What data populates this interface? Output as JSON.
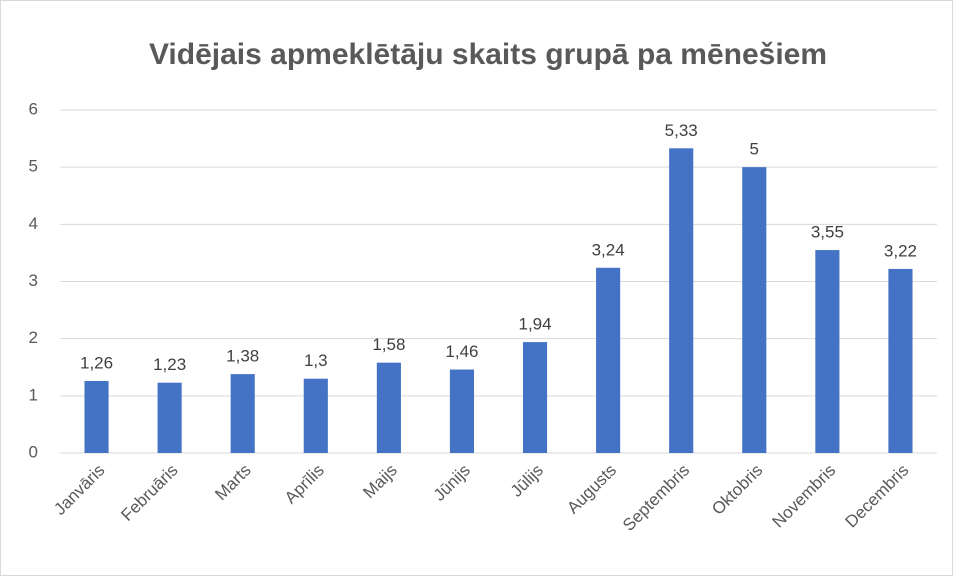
{
  "chart_data": {
    "type": "bar",
    "title": "Vidējais apmeklētāju skaits grupā pa mēnešiem",
    "categories": [
      "Janvāris",
      "Februāris",
      "Marts",
      "Aprīlis",
      "Maijs",
      "Jūnijs",
      "Jūlijs",
      "Augusts",
      "Septembris",
      "Oktobris",
      "Novembris",
      "Decembris"
    ],
    "values": [
      1.26,
      1.23,
      1.38,
      1.3,
      1.58,
      1.46,
      1.94,
      3.24,
      5.33,
      5,
      3.55,
      3.22
    ],
    "value_labels": [
      "1,26",
      "1,23",
      "1,38",
      "1,3",
      "1,58",
      "1,46",
      "1,94",
      "3,24",
      "5,33",
      "5",
      "3,55",
      "3,22"
    ],
    "color": "#4472c4",
    "ylim": [
      0,
      6
    ],
    "yticks": [
      0,
      1,
      2,
      3,
      4,
      5,
      6
    ],
    "grid": true
  }
}
